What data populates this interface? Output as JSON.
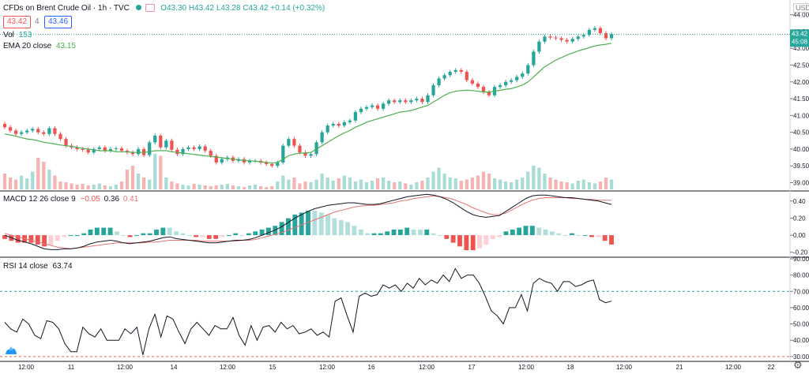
{
  "header": {
    "symbol": "CFDs on Brent Crude Oil · 1h · TVC",
    "ohlc": {
      "o": "O43.30",
      "h": "H43.42",
      "l": "L43.28",
      "c": "C43.42",
      "chg": "+0.14 (+0.32%)"
    },
    "bid": "43.42",
    "spread": "4",
    "ask": "43.46",
    "vol_label": "Vol",
    "vol_value": "153",
    "ema_label": "EMA 20 close",
    "ema_value": "43.15",
    "macd_label": "MACD 12 26 close 9",
    "macd_values": [
      "−0.05",
      "0.36",
      "0.41"
    ],
    "rsi_label": "RSI 14 close",
    "rsi_value": "63.74",
    "currency": "USD"
  },
  "colors": {
    "up": "#26a69a",
    "down": "#ef5350",
    "ema": "#4caf50",
    "macd": "#131722",
    "signal": "#e57373",
    "rsi": "#131722"
  },
  "chart_data": [
    {
      "type": "candlestick",
      "title": "CFDs on Brent Crude Oil · 1h · TVC",
      "ylim": [
        38.8,
        44.25
      ],
      "y_ticks": [
        "39.00",
        "39.50",
        "40.00",
        "40.50",
        "41.00",
        "41.50",
        "42.00",
        "42.50",
        "43.00",
        "43.50",
        "44.00"
      ],
      "last_price": "43.42",
      "countdown": "45:08",
      "x_ticks": [
        "12:00",
        "11",
        "12:00",
        "14",
        "12:00",
        "15",
        "12:00",
        "16",
        "12:00",
        "17",
        "12:00",
        "18",
        "12:00",
        "21",
        "12:00",
        "22"
      ],
      "close": [
        40.65,
        40.55,
        40.45,
        40.5,
        40.55,
        40.6,
        40.5,
        40.45,
        40.62,
        40.45,
        40.3,
        40.1,
        40.05,
        40.0,
        39.98,
        39.9,
        40.0,
        40.05,
        39.95,
        40.0,
        40.02,
        39.95,
        39.9,
        39.85,
        40.0,
        39.82,
        40.2,
        40.4,
        40.05,
        40.25,
        39.98,
        39.85,
        40.0,
        40.05,
        40.0,
        40.08,
        39.95,
        39.8,
        39.6,
        39.7,
        39.75,
        39.65,
        39.7,
        39.6,
        39.65,
        39.65,
        39.6,
        39.55,
        39.5,
        39.6,
        40.1,
        40.3,
        40.1,
        39.9,
        39.8,
        39.85,
        40.2,
        40.5,
        40.7,
        40.75,
        40.7,
        40.8,
        40.85,
        41.1,
        41.2,
        41.25,
        41.3,
        41.2,
        41.35,
        41.45,
        41.4,
        41.45,
        41.4,
        41.45,
        41.5,
        41.4,
        41.6,
        41.9,
        42.1,
        42.2,
        42.3,
        42.35,
        42.3,
        42.05,
        41.95,
        41.85,
        41.7,
        41.6,
        41.85,
        41.9,
        42.0,
        42.05,
        42.15,
        42.25,
        42.5,
        42.9,
        43.2,
        43.35,
        43.32,
        43.3,
        43.25,
        43.2,
        43.28,
        43.35,
        43.4,
        43.55,
        43.6,
        43.45,
        43.3,
        43.42
      ],
      "ema": [
        40.45,
        40.42,
        40.38,
        40.34,
        40.3,
        40.28,
        40.25,
        40.2,
        40.18,
        40.15,
        40.12,
        40.1,
        40.08,
        40.05,
        40.02,
        40.0,
        39.98,
        39.95,
        39.95,
        39.95,
        39.92,
        39.92,
        39.92,
        39.9,
        39.9,
        39.9,
        39.92,
        39.95,
        39.95,
        39.95,
        39.92,
        39.9,
        39.88,
        39.86,
        39.84,
        39.82,
        39.8,
        39.78,
        39.76,
        39.74,
        39.72,
        39.7,
        39.68,
        39.66,
        39.65,
        39.64,
        39.62,
        39.6,
        39.58,
        39.6,
        39.7,
        39.8,
        39.85,
        39.88,
        39.88,
        39.9,
        40.0,
        40.1,
        40.2,
        40.3,
        40.4,
        40.48,
        40.55,
        40.65,
        40.72,
        40.8,
        40.85,
        40.9,
        40.95,
        41.0,
        41.05,
        41.1,
        41.12,
        41.15,
        41.2,
        41.25,
        41.3,
        41.4,
        41.5,
        41.6,
        41.68,
        41.72,
        41.74,
        41.75,
        41.74,
        41.72,
        41.7,
        41.7,
        41.72,
        41.75,
        41.78,
        41.8,
        41.85,
        41.9,
        42.0,
        42.15,
        42.3,
        42.45,
        42.55,
        42.65,
        42.72,
        42.8,
        42.86,
        42.92,
        42.97,
        43.02,
        43.07,
        43.1,
        43.12,
        43.15
      ],
      "volume": [
        40,
        30,
        25,
        35,
        28,
        45,
        80,
        70,
        50,
        35,
        20,
        18,
        15,
        12,
        14,
        10,
        12,
        15,
        10,
        8,
        12,
        20,
        50,
        60,
        40,
        30,
        25,
        90,
        85,
        30,
        20,
        15,
        12,
        10,
        14,
        12,
        10,
        8,
        10,
        12,
        14,
        10,
        8,
        6,
        10,
        12,
        8,
        6,
        8,
        20,
        35,
        25,
        30,
        15,
        20,
        18,
        25,
        40,
        30,
        22,
        28,
        35,
        30,
        20,
        25,
        18,
        22,
        28,
        30,
        22,
        18,
        20,
        15,
        12,
        18,
        22,
        30,
        45,
        55,
        40,
        30,
        28,
        22,
        25,
        30,
        35,
        45,
        40,
        28,
        25,
        20,
        18,
        25,
        30,
        45,
        60,
        55,
        40,
        30,
        25,
        20,
        18,
        15,
        22,
        25,
        18,
        15,
        20,
        30,
        25
      ]
    },
    {
      "type": "line",
      "title": "MACD 12 26 close 9",
      "ylim": [
        -0.24,
        0.5
      ],
      "y_ticks": [
        "0.40",
        "0.20",
        "0.00",
        "-0.20"
      ],
      "macd": [
        0.0,
        -0.03,
        -0.06,
        -0.08,
        -0.1,
        -0.13,
        -0.16,
        -0.17,
        -0.17,
        -0.16,
        -0.16,
        -0.15,
        -0.13,
        -0.1,
        -0.08,
        -0.07,
        -0.06,
        -0.07,
        -0.09,
        -0.1,
        -0.09,
        -0.08,
        -0.07,
        -0.05,
        -0.03,
        -0.02,
        -0.04,
        -0.05,
        -0.06,
        -0.07,
        -0.08,
        -0.09,
        -0.09,
        -0.08,
        -0.07,
        -0.06,
        -0.06,
        -0.05,
        -0.03,
        0.0,
        0.03,
        0.06,
        0.1,
        0.15,
        0.2,
        0.24,
        0.28,
        0.31,
        0.33,
        0.35,
        0.36,
        0.37,
        0.38,
        0.38,
        0.37,
        0.36,
        0.36,
        0.37,
        0.39,
        0.41,
        0.43,
        0.45,
        0.46,
        0.47,
        0.48,
        0.47,
        0.45,
        0.42,
        0.38,
        0.33,
        0.28,
        0.24,
        0.22,
        0.21,
        0.22,
        0.23,
        0.28,
        0.33,
        0.38,
        0.43,
        0.46,
        0.47,
        0.47,
        0.46,
        0.45,
        0.44,
        0.44,
        0.43,
        0.42,
        0.41,
        0.4,
        0.38,
        0.36
      ],
      "signal": [
        0.02,
        0.0,
        -0.02,
        -0.04,
        -0.06,
        -0.08,
        -0.1,
        -0.12,
        -0.14,
        -0.15,
        -0.16,
        -0.15,
        -0.14,
        -0.13,
        -0.12,
        -0.11,
        -0.1,
        -0.09,
        -0.09,
        -0.09,
        -0.09,
        -0.09,
        -0.08,
        -0.08,
        -0.07,
        -0.06,
        -0.06,
        -0.06,
        -0.06,
        -0.06,
        -0.07,
        -0.07,
        -0.07,
        -0.07,
        -0.07,
        -0.07,
        -0.06,
        -0.06,
        -0.05,
        -0.03,
        -0.01,
        0.01,
        0.03,
        0.06,
        0.09,
        0.12,
        0.15,
        0.18,
        0.21,
        0.24,
        0.27,
        0.29,
        0.31,
        0.33,
        0.34,
        0.35,
        0.35,
        0.36,
        0.37,
        0.38,
        0.4,
        0.41,
        0.43,
        0.44,
        0.45,
        0.46,
        0.45,
        0.44,
        0.42,
        0.39,
        0.36,
        0.32,
        0.29,
        0.26,
        0.24,
        0.24,
        0.26,
        0.3,
        0.34,
        0.38,
        0.41,
        0.43,
        0.44,
        0.44,
        0.44,
        0.44,
        0.43,
        0.43,
        0.42,
        0.42,
        0.41,
        0.41,
        0.41
      ]
    },
    {
      "type": "line",
      "title": "RSI 14 close",
      "ylim": [
        28,
        90
      ],
      "y_ticks": [
        "90.00",
        "80.00",
        "70.00",
        "60.00",
        "50.00",
        "40.00",
        "30.00"
      ],
      "bands": [
        70,
        30
      ],
      "values": [
        51,
        47,
        45,
        53,
        50,
        43,
        41,
        52,
        51,
        47,
        38,
        33,
        33,
        48,
        44,
        42,
        47,
        40,
        40,
        40,
        47,
        44,
        48,
        31,
        47,
        56,
        42,
        55,
        53,
        45,
        38,
        47,
        51,
        47,
        43,
        49,
        47,
        47,
        54,
        43,
        37,
        49,
        40,
        48,
        49,
        45,
        51,
        47,
        49,
        44,
        45,
        47,
        43,
        45,
        42,
        64,
        66,
        55,
        45,
        67,
        69,
        67,
        68,
        74,
        72,
        74,
        70,
        75,
        72,
        78,
        74,
        77,
        75,
        80,
        76,
        84,
        78,
        80,
        80,
        75,
        67,
        58,
        55,
        50,
        60,
        60,
        68,
        58,
        75,
        78,
        76,
        75,
        70,
        76,
        76,
        73,
        74,
        76,
        77,
        65,
        63,
        64
      ]
    }
  ]
}
